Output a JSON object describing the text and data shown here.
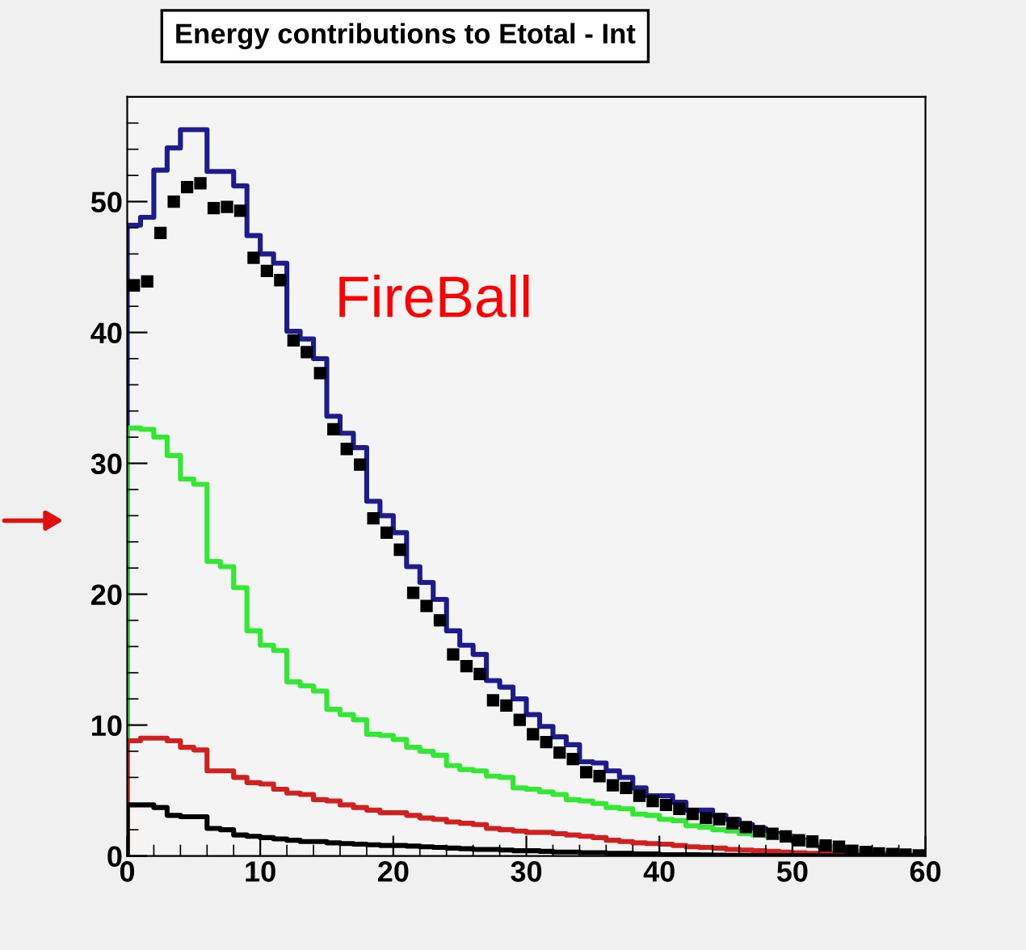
{
  "chart_data": {
    "type": "histogram",
    "title": "Energy contributions to Etotal - Int",
    "annotations": [
      "FireBall"
    ],
    "bins": [
      0,
      1,
      2,
      3,
      4,
      5,
      6,
      7,
      8,
      9,
      10,
      11,
      12,
      13,
      14,
      15,
      16,
      17,
      18,
      19,
      20,
      21,
      22,
      23,
      24,
      25,
      26,
      27,
      28,
      29,
      30,
      31,
      32,
      33,
      34,
      35,
      36,
      37,
      38,
      39,
      40,
      41,
      42,
      43,
      44,
      45,
      46,
      47,
      48,
      49,
      50,
      51,
      52,
      53,
      54,
      55,
      56,
      57,
      58,
      59,
      60
    ],
    "series": [
      {
        "color": "#1c1c8c",
        "values": [
          48.2,
          48.8,
          52.4,
          54.1,
          55.5,
          55.5,
          52.3,
          52.3,
          51.2,
          47.4,
          46.0,
          45.3,
          40.1,
          39.5,
          38.0,
          33.6,
          32.3,
          31.2,
          27.1,
          26.0,
          24.7,
          22.1,
          20.9,
          19.6,
          17.2,
          16.1,
          15.4,
          13.4,
          12.9,
          12.0,
          10.8,
          9.9,
          9.1,
          8.5,
          7.2,
          7.1,
          6.5,
          6.0,
          5.2,
          4.6,
          4.6,
          4.1,
          3.5,
          3.5,
          3.1,
          2.8,
          2.4,
          2.1,
          1.7,
          1.5,
          1.2,
          0.9,
          0.7,
          0.5,
          0.3,
          0.2,
          0.15,
          0.1,
          0.05,
          0.05
        ]
      },
      {
        "color": "#33e833",
        "values": [
          32.7,
          32.6,
          32.0,
          30.6,
          28.8,
          28.4,
          22.5,
          22.1,
          20.5,
          17.2,
          16.1,
          15.7,
          13.3,
          13.0,
          12.6,
          11.2,
          10.8,
          10.4,
          9.3,
          9.2,
          8.9,
          8.3,
          8.0,
          7.7,
          6.9,
          6.6,
          6.5,
          6.1,
          6.0,
          5.2,
          5.1,
          4.9,
          4.7,
          4.3,
          4.2,
          4.0,
          3.7,
          3.6,
          3.2,
          3.1,
          2.8,
          2.7,
          2.3,
          2.2,
          2.0,
          1.9,
          1.7,
          1.6,
          1.5,
          1.4,
          1.1,
          0.9,
          0.7,
          0.5,
          0.3,
          0.2,
          0.1,
          0.05,
          0.02,
          0
        ]
      },
      {
        "color": "#d02020",
        "values": [
          8.8,
          9.0,
          9.0,
          8.8,
          8.3,
          8.1,
          6.5,
          6.5,
          6.0,
          5.6,
          5.5,
          5.1,
          4.8,
          4.7,
          4.3,
          4.2,
          3.9,
          3.7,
          3.5,
          3.3,
          3.3,
          3.1,
          2.9,
          2.8,
          2.6,
          2.5,
          2.4,
          2.1,
          2.0,
          1.9,
          1.8,
          1.8,
          1.7,
          1.6,
          1.5,
          1.4,
          1.2,
          1.1,
          1.0,
          0.95,
          0.9,
          0.8,
          0.7,
          0.65,
          0.6,
          0.5,
          0.45,
          0.4,
          0.35,
          0.3,
          0.25,
          0.2,
          0.15,
          0.1,
          0.08,
          0.05,
          0.03,
          0.02,
          0.01,
          0
        ]
      },
      {
        "color": "#000000",
        "values": [
          3.9,
          3.9,
          3.7,
          3.1,
          3.0,
          3.0,
          2.1,
          2.0,
          1.6,
          1.5,
          1.4,
          1.3,
          1.2,
          1.1,
          1.1,
          1.0,
          0.95,
          0.9,
          0.85,
          0.8,
          0.8,
          0.75,
          0.7,
          0.65,
          0.6,
          0.55,
          0.5,
          0.5,
          0.45,
          0.4,
          0.4,
          0.35,
          0.3,
          0.3,
          0.25,
          0.25,
          0.2,
          0.2,
          0.15,
          0.15,
          0.1,
          0.1,
          0.1,
          0.08,
          0.06,
          0.05,
          0.04,
          0.03,
          0.02,
          0.02,
          0.01,
          0.01,
          0,
          0,
          0,
          0,
          0,
          0,
          0,
          0
        ]
      },
      {
        "type": "scatter",
        "color": "#000000",
        "marker": "square",
        "x": [
          0.5,
          1.5,
          2.5,
          3.5,
          4.5,
          5.5,
          6.5,
          7.5,
          8.5,
          9.5,
          10.5,
          11.5,
          12.5,
          13.5,
          14.5,
          15.5,
          16.5,
          17.5,
          18.5,
          19.5,
          20.5,
          21.5,
          22.5,
          23.5,
          24.5,
          25.5,
          26.5,
          27.5,
          28.5,
          29.5,
          30.5,
          31.5,
          32.5,
          33.5,
          34.5,
          35.5,
          36.5,
          37.5,
          38.5,
          39.5,
          40.5,
          41.5,
          42.5,
          43.5,
          44.5,
          45.5,
          46.5,
          47.5,
          48.5,
          49.5,
          50.5,
          51.5,
          52.5,
          53.5,
          54.5,
          55.5,
          56.5,
          57.5,
          58.5,
          59.5
        ],
        "values": [
          43.6,
          43.9,
          47.6,
          50.0,
          51.1,
          51.4,
          49.5,
          49.6,
          49.3,
          45.7,
          44.7,
          44.0,
          39.4,
          38.5,
          36.9,
          32.6,
          31.1,
          29.9,
          25.8,
          24.7,
          23.4,
          20.1,
          19.1,
          18.0,
          15.4,
          14.5,
          13.9,
          11.9,
          11.5,
          10.4,
          9.3,
          8.7,
          7.9,
          7.4,
          6.4,
          6.1,
          5.4,
          5.2,
          4.6,
          4.2,
          3.9,
          3.6,
          3.2,
          2.9,
          2.8,
          2.5,
          2.2,
          1.9,
          1.7,
          1.5,
          1.2,
          1.1,
          0.8,
          0.7,
          0.4,
          0.3,
          0.2,
          0.15,
          0.1,
          0.05
        ]
      }
    ],
    "xlim": [
      0,
      60
    ],
    "xticks": [
      0,
      10,
      20,
      30,
      40,
      50,
      60
    ],
    "ylim": [
      0,
      58
    ],
    "yticks": [
      0,
      10,
      20,
      30,
      40,
      50
    ],
    "grid": false,
    "legend": false
  }
}
